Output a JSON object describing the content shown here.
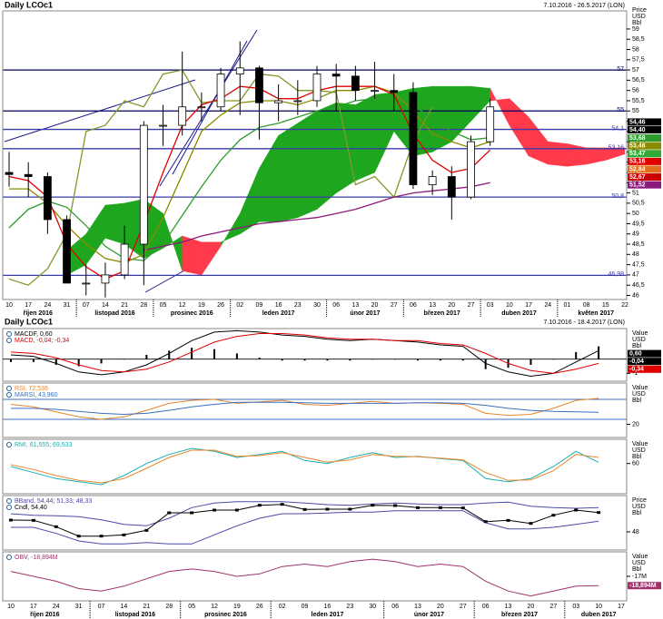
{
  "chart_data": [
    {
      "type": "candlestick",
      "title": "Daily LCOc1",
      "subtitle": "7.10.2016 - 26.5.2017 (LON)",
      "axis_label": [
        "Price",
        "USD",
        "Bbl"
      ],
      "categories": [
        "10",
        "17",
        "24",
        "31",
        "07",
        "14",
        "21",
        "28",
        "05",
        "12",
        "19",
        "26",
        "02",
        "09",
        "16",
        "23",
        "30",
        "06",
        "13",
        "20",
        "27",
        "06",
        "13",
        "20",
        "27",
        "03",
        "10",
        "17",
        "24",
        "01",
        "08",
        "15",
        "22"
      ],
      "months": [
        "říjen 2016",
        "listopad 2016",
        "prosinec 2016",
        "leden 2017",
        "únor 2017",
        "březen 2017",
        "duben 2017",
        "květen 2017"
      ],
      "open": [
        52.0,
        51.9,
        51.8,
        49.7,
        46.6,
        46.6,
        47.0,
        48.5,
        54.3,
        54.3,
        55.2,
        55.2,
        56.8,
        57.1,
        55.4,
        55.5,
        55.5,
        56.8,
        56.7,
        56.0,
        56.0,
        55.9,
        51.4,
        51.8,
        50.8,
        53.5,
        null,
        null,
        null,
        null,
        null,
        null,
        null
      ],
      "high": [
        53.0,
        52.5,
        52.0,
        49.9,
        47.5,
        47.6,
        49.4,
        54.5,
        55.3,
        57.9,
        55.9,
        57.1,
        58.4,
        57.2,
        56.3,
        56.5,
        57.2,
        57.3,
        57.2,
        57.4,
        56.8,
        56.4,
        52.1,
        52.3,
        53.8,
        55.6,
        null,
        null,
        null,
        null,
        null,
        null,
        null
      ],
      "low": [
        51.3,
        50.8,
        49.0,
        46.6,
        46.0,
        45.9,
        46.8,
        46.5,
        53.3,
        53.8,
        54.5,
        55.0,
        54.8,
        53.6,
        54.5,
        54.8,
        55.2,
        55.0,
        55.5,
        55.6,
        55.0,
        51.2,
        50.9,
        49.7,
        50.7,
        53.3,
        null,
        null,
        null,
        null,
        null,
        null,
        null
      ],
      "close": [
        51.9,
        51.8,
        49.7,
        46.6,
        46.6,
        47.0,
        48.5,
        54.3,
        54.3,
        55.2,
        55.2,
        56.8,
        57.1,
        55.4,
        55.5,
        55.5,
        56.8,
        56.7,
        56.0,
        56.0,
        55.9,
        51.4,
        51.8,
        50.8,
        53.5,
        55.2,
        null,
        null,
        null,
        null,
        null,
        null,
        null
      ],
      "cloud": {
        "colors": [
          "#1ea71e",
          "#ff3b4b"
        ],
        "span_a": [
          null,
          null,
          null,
          48.2,
          49.0,
          50.4,
          50.5,
          50.7,
          50.0,
          47.2,
          47.0,
          48.4,
          50.0,
          52.2,
          53.8,
          54.4,
          55.0,
          55.4,
          55.3,
          55.8,
          55.9,
          56.1,
          56.2,
          56.2,
          56.2,
          56.1,
          54.3,
          52.8,
          52.4,
          52.3,
          52.4,
          52.6,
          52.9
        ],
        "span_b": [
          null,
          null,
          null,
          47.0,
          47.5,
          48.8,
          48.5,
          47.8,
          48.3,
          48.9,
          48.6,
          48.6,
          49.0,
          49.6,
          49.6,
          49.8,
          50.2,
          51.0,
          51.6,
          52.0,
          54.0,
          52.8,
          53.0,
          53.5,
          54.5,
          55.5,
          55.6,
          54.7,
          53.5,
          53.4,
          53.2,
          53.2,
          53.2
        ]
      },
      "series": [
        {
          "color": "#7f9a2a",
          "values": [
            46.8,
            46.5,
            47.3,
            49.0,
            54.0,
            54.3,
            55.5,
            55.2,
            56.8,
            57.0,
            55.4,
            55.5,
            55.5,
            56.8,
            56.7,
            56.0,
            56.0,
            55.9,
            51.4,
            51.8,
            50.8,
            53.5,
            55.2,
            null,
            null,
            null,
            null,
            null,
            null,
            null,
            null,
            null,
            null
          ]
        },
        {
          "color": "#2e9b2e",
          "values": [
            49.3,
            50.2,
            50.6,
            50.3,
            49.4,
            48.4,
            47.8,
            47.7,
            48.5,
            49.9,
            51.3,
            52.6,
            53.6,
            54.2,
            54.4,
            54.7,
            55.0,
            55.2,
            55.5,
            55.6,
            55.7,
            55.3,
            54.6,
            54.0,
            53.6,
            53.7,
            null,
            null,
            null,
            null,
            null,
            null,
            null
          ]
        },
        {
          "color": "#8b1a7a",
          "values": [
            null,
            null,
            null,
            null,
            null,
            null,
            null,
            48.2,
            48.4,
            48.6,
            48.9,
            49.1,
            49.3,
            49.5,
            49.6,
            49.7,
            49.8,
            50.0,
            50.2,
            50.5,
            50.8,
            51.0,
            51.1,
            51.2,
            51.3,
            51.5,
            null,
            null,
            null,
            null,
            null,
            null,
            null
          ]
        },
        {
          "color": "#8b8b00",
          "values": [
            51.2,
            51.2,
            50.5,
            49.4,
            48.5,
            47.8,
            47.6,
            48.0,
            49.8,
            51.9,
            54.0,
            54.8,
            55.4,
            55.5,
            55.5,
            55.3,
            55.6,
            56.0,
            56.0,
            56.2,
            55.9,
            55.0,
            53.9,
            53.5,
            53.2,
            53.5,
            null,
            null,
            null,
            null,
            null,
            null,
            null
          ]
        },
        {
          "color": "#e00000",
          "values": [
            51.8,
            51.6,
            50.8,
            48.5,
            47.4,
            46.8,
            47.2,
            49.5,
            52.0,
            54.3,
            55.3,
            55.6,
            56.2,
            56.1,
            55.6,
            55.6,
            56.0,
            56.2,
            56.2,
            56.2,
            55.8,
            53.9,
            52.6,
            52.0,
            52.2,
            53.1,
            null,
            null,
            null,
            null,
            null,
            null,
            null
          ]
        }
      ],
      "hlines": [
        {
          "value": 57,
          "label": "57",
          "color": "#00005a"
        },
        {
          "value": 55,
          "label": "55",
          "color": "#00005a"
        },
        {
          "value": 54.1,
          "label": "54,1",
          "color": "#3a3aa8"
        },
        {
          "value": 53.16,
          "label": "53,16",
          "color": "#3a3aa8"
        },
        {
          "value": 50.8,
          "label": "50,8",
          "color": "#3a3aa8"
        },
        {
          "value": 46.98,
          "label": "46,98",
          "color": "#3a3aa8"
        }
      ],
      "price_labels": [
        {
          "value": 54.46,
          "label": "54,46",
          "color": "#000000"
        },
        {
          "value": 54.4,
          "label": "54,40",
          "color": "#000000"
        },
        {
          "value": 53.68,
          "label": "53,68",
          "color": "#2e9b2e"
        },
        {
          "value": 53.48,
          "label": "53,48",
          "color": "#8b8b00"
        },
        {
          "value": 53.47,
          "label": "53,47",
          "color": "#33aa33"
        },
        {
          "value": 53.16,
          "label": "53,16",
          "color": "#e00000"
        },
        {
          "value": 52.84,
          "label": "52,84",
          "color": "#e07020"
        },
        {
          "value": 52.67,
          "label": "52,67",
          "color": "#cc0000"
        },
        {
          "value": 51.52,
          "label": "51,52",
          "color": "#8b1a7a"
        }
      ],
      "ylim": [
        45.8,
        59.75
      ],
      "yticks": [
        59,
        {
          "value": 58.5,
          "label": "58,5"
        },
        58,
        {
          "value": 57.5,
          "label": "57,5"
        },
        57,
        {
          "value": 56.5,
          "label": "56,5"
        },
        56,
        {
          "value": 55.5,
          "label": "55,5"
        },
        55,
        {
          "value": 54.5,
          "label": "54,5"
        },
        54,
        {
          "value": 53.5,
          "label": "53,5"
        },
        53,
        {
          "value": 52.5,
          "label": "52,5"
        },
        52,
        {
          "value": 51.5,
          "label": "51,5"
        },
        51,
        {
          "value": 50.5,
          "label": "50,5"
        },
        50,
        {
          "value": 49.5,
          "label": "49,5"
        },
        49,
        {
          "value": 48.5,
          "label": "48,5"
        },
        48,
        {
          "value": 47.5,
          "label": "47,5"
        },
        47,
        {
          "value": 46.5,
          "label": "46,5"
        },
        46
      ]
    },
    {
      "type": "line",
      "title": "Daily LCOc1",
      "subtitle": "7.10.2016 - 18.4.2017 (LON)",
      "axis_label": [
        "Value",
        "USD",
        "Bbl"
      ],
      "series": [
        {
          "name": "MACDF, 0,60",
          "color": "#000000",
          "values": [
            0.3,
            0.2,
            -0.3,
            -0.9,
            -1.1,
            -0.9,
            -0.4,
            0.4,
            1.3,
            1.9,
            2.0,
            1.9,
            1.7,
            1.6,
            1.4,
            1.3,
            1.4,
            1.3,
            1.2,
            1.0,
            0.9,
            -0.3,
            -0.9,
            -1.2,
            -1.0,
            -0.2,
            0.6,
            null
          ]
        },
        {
          "name": "MACD, -0,04; -0,34",
          "color": "#e00000",
          "values": [
            0.5,
            0.4,
            0.1,
            -0.4,
            -0.8,
            -0.9,
            -0.7,
            -0.2,
            0.5,
            1.2,
            1.6,
            1.8,
            1.8,
            1.7,
            1.5,
            1.4,
            1.4,
            1.3,
            1.3,
            1.1,
            1.0,
            0.4,
            -0.3,
            -0.8,
            -1.0,
            -0.7,
            -0.3,
            null
          ]
        }
      ],
      "histogram": {
        "color": "#000000",
        "values": [
          -0.2,
          -0.2,
          -0.4,
          -0.5,
          -0.3,
          0.0,
          0.3,
          0.6,
          0.8,
          0.7,
          0.4,
          0.1,
          -0.1,
          -0.1,
          -0.1,
          -0.1,
          0.0,
          0.0,
          -0.1,
          -0.1,
          -0.1,
          -0.7,
          -0.6,
          -0.4,
          0.0,
          0.5,
          0.9,
          null
        ]
      },
      "value_boxes": [
        {
          "value": 0.6,
          "label": "0,60",
          "color": "#000000"
        },
        {
          "value": -0.04,
          "label": "-0,04",
          "color": "#000000"
        },
        {
          "value": -0.34,
          "label": "-0,34",
          "color": "#e00000"
        }
      ],
      "ylim": [
        -1.55,
        2.15
      ],
      "yticks": [
        -1
      ]
    },
    {
      "type": "line",
      "axis_label": [
        "Value",
        "USD",
        "Bbl"
      ],
      "series": [
        {
          "name": "RSI, 72,536",
          "color": "#e8862a",
          "values": [
            60,
            55,
            45,
            35,
            30,
            35,
            48,
            62,
            68,
            70,
            62,
            65,
            68,
            60,
            58,
            62,
            66,
            62,
            63,
            62,
            60,
            42,
            38,
            40,
            52,
            68,
            72,
            null
          ]
        },
        {
          "name": "MARSI, 43,960",
          "color": "#3a6fc0",
          "values": [
            52,
            52,
            50,
            46,
            42,
            40,
            42,
            48,
            55,
            60,
            64,
            64,
            64,
            63,
            62,
            62,
            62,
            62,
            63,
            63,
            62,
            58,
            52,
            48,
            46,
            45,
            44,
            null
          ]
        }
      ],
      "hlines": [
        70,
        30
      ],
      "ylim": [
        -6.4,
        102.7
      ],
      "yticks": [
        20
      ]
    },
    {
      "type": "line",
      "axis_label": [
        "Value",
        "USD",
        "Bbl"
      ],
      "series": [
        {
          "name": "RMI, 61,555; 69,533",
          "color": "#1ab0b0",
          "values": [
            55,
            45,
            35,
            30,
            25,
            40,
            60,
            75,
            85,
            80,
            70,
            75,
            80,
            65,
            60,
            70,
            78,
            70,
            72,
            68,
            65,
            35,
            30,
            35,
            55,
            80,
            62,
            null
          ]
        },
        {
          "color": "#e8862a",
          "values": [
            58,
            50,
            40,
            32,
            28,
            35,
            52,
            70,
            82,
            82,
            72,
            73,
            78,
            70,
            62,
            66,
            75,
            72,
            71,
            69,
            66,
            45,
            32,
            33,
            48,
            75,
            70,
            null
          ]
        }
      ],
      "ylim": [
        10,
        100
      ],
      "yticks": [
        60
      ]
    },
    {
      "type": "line",
      "axis_label": [
        "Price",
        "USD",
        "Bbl"
      ],
      "series": [
        {
          "name": "BBand, 54,44; 51,33; 48,33",
          "color": "#4a4aa8",
          "values": [
            54.0,
            53.5,
            53.3,
            53.0,
            52.0,
            50.5,
            50.0,
            52.5,
            56.0,
            57.5,
            58.0,
            58.0,
            58.0,
            57.5,
            57.0,
            56.8,
            57.2,
            57.5,
            57.2,
            57.0,
            57.0,
            57.5,
            57.8,
            56.5,
            56.0,
            55.8,
            56.0,
            null
          ]
        },
        {
          "color": "#4a4aa8",
          "values": [
            49.5,
            49.5,
            47.5,
            45.0,
            44.0,
            44.0,
            44.5,
            44.0,
            44.0,
            47.0,
            50.0,
            52.5,
            54.0,
            54.0,
            54.2,
            54.5,
            54.5,
            55.0,
            55.0,
            55.0,
            55.0,
            51.0,
            49.0,
            49.0,
            49.5,
            50.5,
            51.5,
            null
          ]
        },
        {
          "name": "Cndl, 54,40",
          "color": "#000000",
          "markers": true,
          "values": [
            51.9,
            51.8,
            49.7,
            46.6,
            46.6,
            47.0,
            48.5,
            54.3,
            54.3,
            55.2,
            55.2,
            56.8,
            57.1,
            55.4,
            55.5,
            55.5,
            56.8,
            56.7,
            56.0,
            56.0,
            55.9,
            51.4,
            51.8,
            50.8,
            53.5,
            55.2,
            54.4,
            null
          ]
        }
      ],
      "ylim": [
        42,
        60
      ],
      "yticks": [
        48
      ]
    },
    {
      "type": "line",
      "axis_label": [
        "Value",
        "USD",
        "Bbl"
      ],
      "series": [
        {
          "name": "OBV, -18,894M",
          "color": "#a0306a",
          "values": [
            -16,
            -17,
            -18,
            -19.5,
            -20,
            -19,
            -17.5,
            -16,
            -15.5,
            -16,
            -17,
            -16.5,
            -15,
            -14.5,
            -15,
            -14,
            -13.5,
            -14,
            -15,
            -14.5,
            -15,
            -18,
            -20,
            -21,
            -20,
            -19,
            -18.9,
            null
          ]
        }
      ],
      "value_boxes": [
        {
          "value": -18.894,
          "label": "-18,894M",
          "color": "#a0306a"
        }
      ],
      "ylim": [
        -22,
        -12
      ],
      "yticks": [
        {
          "value": -17,
          "label": "-17M"
        }
      ],
      "categories": [
        "10",
        "17",
        "24",
        "31",
        "07",
        "14",
        "21",
        "28",
        "05",
        "12",
        "19",
        "26",
        "02",
        "09",
        "16",
        "23",
        "30",
        "06",
        "13",
        "20",
        "27",
        "06",
        "13",
        "20",
        "27",
        "03",
        "10",
        "17"
      ],
      "months": [
        "říjen 2016",
        "listopad 2016",
        "prosinec 2016",
        "leden 2017",
        "únor 2017",
        "březen 2017",
        "duben 2017"
      ]
    }
  ]
}
